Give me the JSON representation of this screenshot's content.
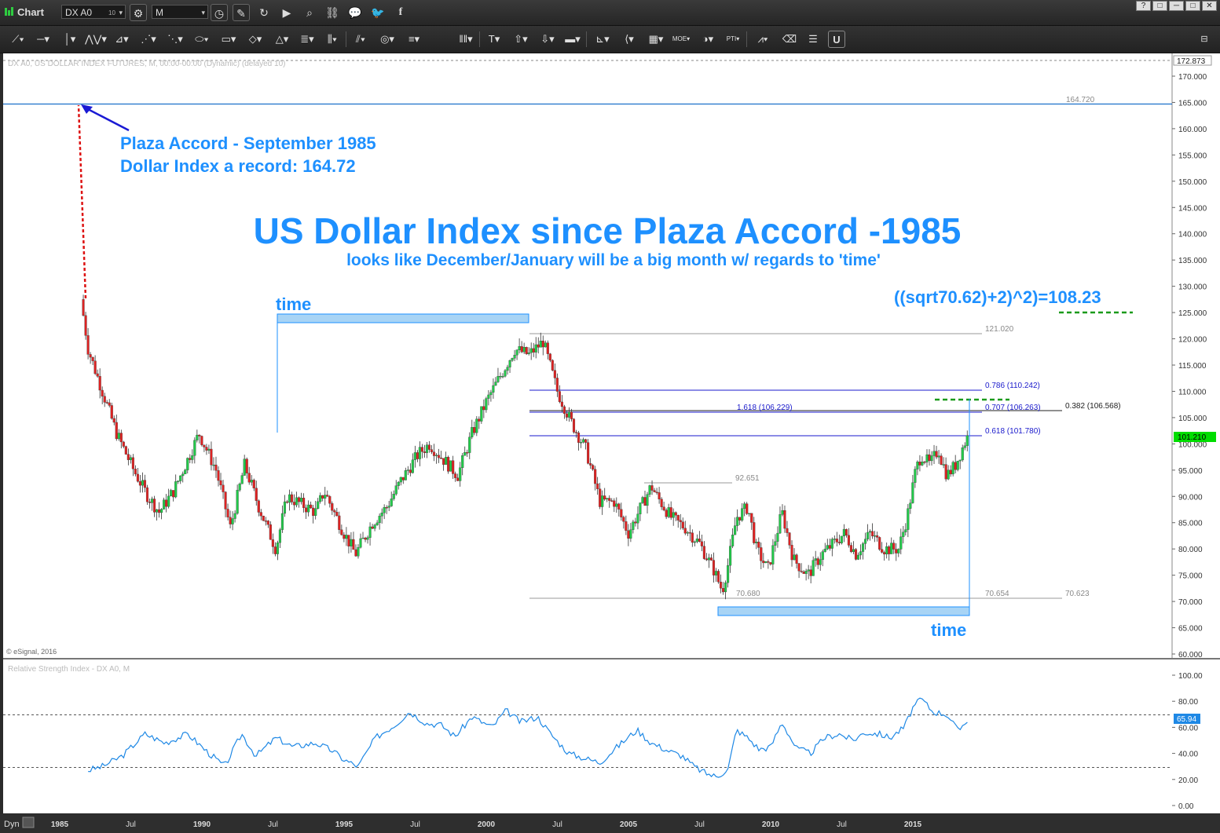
{
  "window": {
    "app_label": "Chart",
    "symbol": "DX A0",
    "symbol_superscript": "10",
    "interval": "M",
    "window_buttons": [
      "?",
      "□",
      "─",
      "□",
      "✕"
    ]
  },
  "toolbar": {
    "icons": [
      "line-tool-icon",
      "horizontal-line-icon",
      "vertical-line-icon",
      "zigzag-icon",
      "fan-icon",
      "fan-lines-icon",
      "gann-fan-icon",
      "ellipse-icon",
      "rectangle-icon",
      "diamond-icon",
      "triangle-icon",
      "fibonacci-icon",
      "bars-icon",
      "parallel-lines-icon",
      "circles-icon",
      "pitchfork-icon",
      "cycle-lines-icon",
      "text-icon",
      "arrow-up-icon",
      "arrow-down-icon",
      "marker-icon",
      "regression-icon",
      "speed-lines-icon",
      "grid-icon",
      "moe-icon",
      "time-icon",
      "pti-icon",
      "pattern-icon",
      "eraser-icon",
      "layers-icon",
      "magnet-icon",
      "properties-icon"
    ]
  },
  "price_panel": {
    "header": "DX A0, US DOLLAR INDEX FUTURES, M, 00:00-00:00 (Dynamic) (delayed 10)",
    "copyright": "© eSignal, 2016",
    "price_tag": "172.873",
    "last_price": "101.210",
    "y_ticks": [
      "170.000",
      "165.000",
      "160.000",
      "155.000",
      "150.000",
      "145.000",
      "140.000",
      "135.000",
      "130.000",
      "125.000",
      "120.000",
      "115.000",
      "110.000",
      "105.000",
      "100.000",
      "95.000",
      "90.000",
      "85.000",
      "80.000",
      "75.000",
      "70.000",
      "65.000",
      "60.000"
    ],
    "levels": {
      "record": "164.720",
      "high_2001": "121.020",
      "low_2008": "70.680",
      "low_b": "70.654",
      "low_c": "70.623",
      "mid_2005": "92.651"
    },
    "fib_labels": {
      "f786": "0.786 (110.242)",
      "f707": "0.707 (106.263)",
      "f1618": "1.618 (106.229)",
      "f618": "0.618 (101.780)",
      "f382": "0.382 (106.568)"
    }
  },
  "annotations": {
    "plaza_line1": "Plaza Accord - September 1985",
    "plaza_line2": "Dollar Index a record: 164.72",
    "title": "US Dollar Index since Plaza Accord -1985",
    "subtitle": "looks like December/January will be a big month w/ regards to 'time'",
    "formula": "((sqrt70.62)+2)^2)=108.23",
    "time_top": "time",
    "time_bottom": "time"
  },
  "rsi_panel": {
    "header": "Relative Strength Index - DX A0, M",
    "y_ticks": [
      "100.00",
      "80.00",
      "60.00",
      "40.00",
      "20.00",
      "0.00"
    ],
    "last_value": "65.94"
  },
  "x_axis": {
    "dyn_label": "Dyn",
    "ticks": [
      "1985",
      "Jul",
      "1990",
      "Jul",
      "1995",
      "Jul",
      "2000",
      "Jul",
      "2005",
      "Jul",
      "2010",
      "Jul",
      "2015"
    ]
  },
  "colors": {
    "annotation_blue": "#1e90ff",
    "bull_candle": "#22c94a",
    "bear_candle": "#dd2222",
    "rsi_line": "#1e88e5",
    "level_line": "#1a1acc",
    "last_price_bg": "#00dd00"
  },
  "chart_data": [
    {
      "type": "candlestick",
      "title": "US Dollar Index since Plaza Accord -1985",
      "subtitle": "looks like December/January will be a big month w/ regards to 'time'",
      "x_range": [
        1985.7,
        2016.1
      ],
      "ylim": [
        60,
        172.873
      ],
      "anchors": [
        [
          1985.75,
          127.5
        ],
        [
          1986.0,
          118
        ],
        [
          1986.5,
          110
        ],
        [
          1987.0,
          102
        ],
        [
          1987.6,
          95
        ],
        [
          1988.1,
          90
        ],
        [
          1988.5,
          87
        ],
        [
          1989.0,
          91
        ],
        [
          1989.5,
          97
        ],
        [
          1989.9,
          102
        ],
        [
          1990.5,
          95
        ],
        [
          1991.0,
          84
        ],
        [
          1991.5,
          96
        ],
        [
          1992.0,
          88
        ],
        [
          1992.6,
          80
        ],
        [
          1993.0,
          90
        ],
        [
          1994.0,
          87
        ],
        [
          1994.3,
          91
        ],
        [
          1995.0,
          83
        ],
        [
          1995.4,
          79
        ],
        [
          1996.0,
          85
        ],
        [
          1996.5,
          88
        ],
        [
          1997.0,
          93
        ],
        [
          1997.6,
          98
        ],
        [
          1998.0,
          100
        ],
        [
          1998.5,
          97
        ],
        [
          1999.0,
          94
        ],
        [
          1999.5,
          102
        ],
        [
          2000.0,
          108
        ],
        [
          2000.5,
          113
        ],
        [
          2001.0,
          118
        ],
        [
          2001.5,
          117
        ],
        [
          2002.0,
          119.5
        ],
        [
          2002.5,
          110
        ],
        [
          2003.0,
          104
        ],
        [
          2003.5,
          99
        ],
        [
          2004.0,
          89
        ],
        [
          2004.5,
          89
        ],
        [
          2005.0,
          83
        ],
        [
          2005.8,
          92
        ],
        [
          2006.0,
          90
        ],
        [
          2006.5,
          86
        ],
        [
          2007.0,
          84
        ],
        [
          2007.5,
          81
        ],
        [
          2008.0,
          76
        ],
        [
          2008.3,
          72
        ],
        [
          2008.5,
          77
        ],
        [
          2008.8,
          86
        ],
        [
          2009.2,
          88
        ],
        [
          2009.5,
          80
        ],
        [
          2009.9,
          76
        ],
        [
          2010.4,
          87
        ],
        [
          2010.8,
          78
        ],
        [
          2011.3,
          75
        ],
        [
          2011.8,
          79
        ],
        [
          2012.2,
          81
        ],
        [
          2012.6,
          83
        ],
        [
          2013.0,
          79
        ],
        [
          2013.5,
          83
        ],
        [
          2014.0,
          80
        ],
        [
          2014.5,
          80
        ],
        [
          2014.8,
          86
        ],
        [
          2015.1,
          95
        ],
        [
          2015.3,
          98
        ],
        [
          2015.6,
          96
        ],
        [
          2015.9,
          99
        ],
        [
          2016.0,
          97
        ],
        [
          2016.2,
          94
        ],
        [
          2016.5,
          96
        ],
        [
          2016.9,
          101.21
        ]
      ],
      "record_high": 164.72
    },
    {
      "type": "line",
      "title": "Relative Strength Index - DX A0, M",
      "ylim": [
        0,
        100
      ],
      "bands": [
        70,
        30
      ],
      "anchors": [
        [
          1986.0,
          27
        ],
        [
          1986.5,
          30
        ],
        [
          1987.2,
          38
        ],
        [
          1988.0,
          55
        ],
        [
          1988.7,
          48
        ],
        [
          1989.5,
          55
        ],
        [
          1990.2,
          41
        ],
        [
          1990.8,
          30
        ],
        [
          1991.4,
          55
        ],
        [
          1991.9,
          38
        ],
        [
          1992.6,
          52
        ],
        [
          1993.2,
          45
        ],
        [
          1994.0,
          48
        ],
        [
          1994.6,
          42
        ],
        [
          1995.0,
          35
        ],
        [
          1995.5,
          30
        ],
        [
          1996.1,
          52
        ],
        [
          1996.8,
          62
        ],
        [
          1997.3,
          72
        ],
        [
          1997.9,
          63
        ],
        [
          1998.4,
          62
        ],
        [
          1998.9,
          53
        ],
        [
          1999.5,
          68
        ],
        [
          2000.2,
          60
        ],
        [
          2000.7,
          73
        ],
        [
          2001.2,
          64
        ],
        [
          2001.8,
          68
        ],
        [
          2002.3,
          54
        ],
        [
          2002.9,
          40
        ],
        [
          2003.5,
          36
        ],
        [
          2004.0,
          33
        ],
        [
          2004.6,
          45
        ],
        [
          2005.3,
          58
        ],
        [
          2005.8,
          48
        ],
        [
          2006.4,
          42
        ],
        [
          2006.9,
          38
        ],
        [
          2007.3,
          30
        ],
        [
          2007.7,
          25
        ],
        [
          2008.1,
          22
        ],
        [
          2008.5,
          28
        ],
        [
          2008.8,
          58
        ],
        [
          2009.2,
          52
        ],
        [
          2009.6,
          43
        ],
        [
          2010.0,
          45
        ],
        [
          2010.4,
          64
        ],
        [
          2010.9,
          44
        ],
        [
          2011.4,
          40
        ],
        [
          2011.9,
          52
        ],
        [
          2012.4,
          55
        ],
        [
          2012.9,
          50
        ],
        [
          2013.3,
          56
        ],
        [
          2013.8,
          55
        ],
        [
          2014.2,
          52
        ],
        [
          2014.7,
          60
        ],
        [
          2015.0,
          75
        ],
        [
          2015.3,
          82
        ],
        [
          2015.7,
          72
        ],
        [
          2016.2,
          70
        ],
        [
          2016.6,
          57
        ],
        [
          2016.9,
          65.94
        ]
      ]
    }
  ]
}
